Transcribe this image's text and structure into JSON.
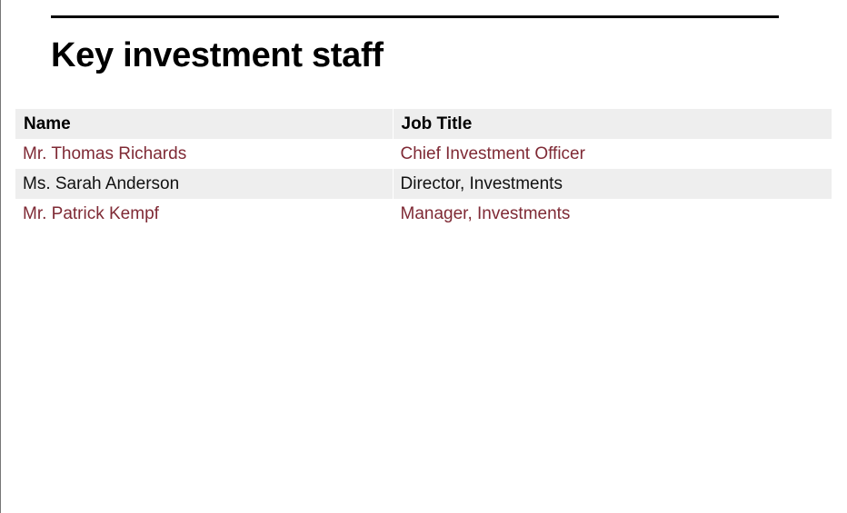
{
  "page": {
    "title": "Key investment staff"
  },
  "table": {
    "headers": {
      "name": "Name",
      "job_title": "Job Title"
    },
    "rows": [
      {
        "name": "Mr. Thomas Richards",
        "job_title": "Chief Investment Officer"
      },
      {
        "name": "Ms. Sarah Anderson",
        "job_title": "Director, Investments"
      },
      {
        "name": "Mr. Patrick Kempf",
        "job_title": "Manager, Investments"
      }
    ]
  },
  "colors": {
    "link_text": "#7f2a35",
    "plain_text": "#111111",
    "stripe": "#eeeeee"
  }
}
